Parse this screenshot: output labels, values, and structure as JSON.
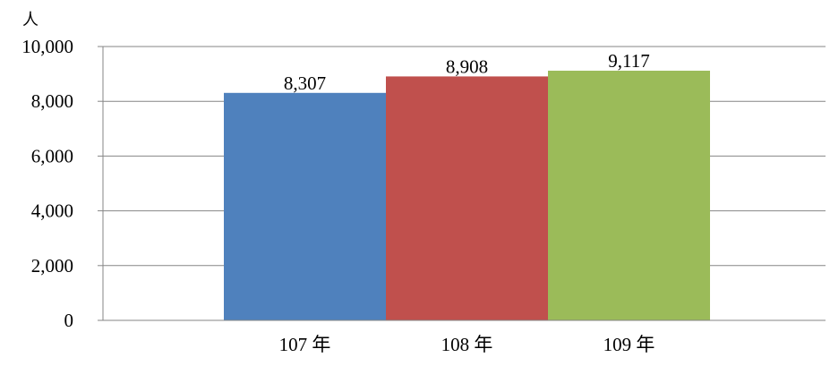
{
  "chart_data": {
    "type": "bar",
    "categories": [
      "107 年",
      "108 年",
      "109 年"
    ],
    "values": [
      8307,
      8908,
      9117
    ],
    "value_labels": [
      "8,307",
      "8,908",
      "9,117"
    ],
    "colors": [
      "#4f81bd",
      "#c0504d",
      "#9bbb59"
    ],
    "title": "",
    "xlabel": "",
    "ylabel": "人",
    "ylim": [
      0,
      10000
    ],
    "yticks": [
      "0",
      "2,000",
      "4,000",
      "6,000",
      "8,000",
      "10,000"
    ],
    "grid": true,
    "legend": "none"
  }
}
